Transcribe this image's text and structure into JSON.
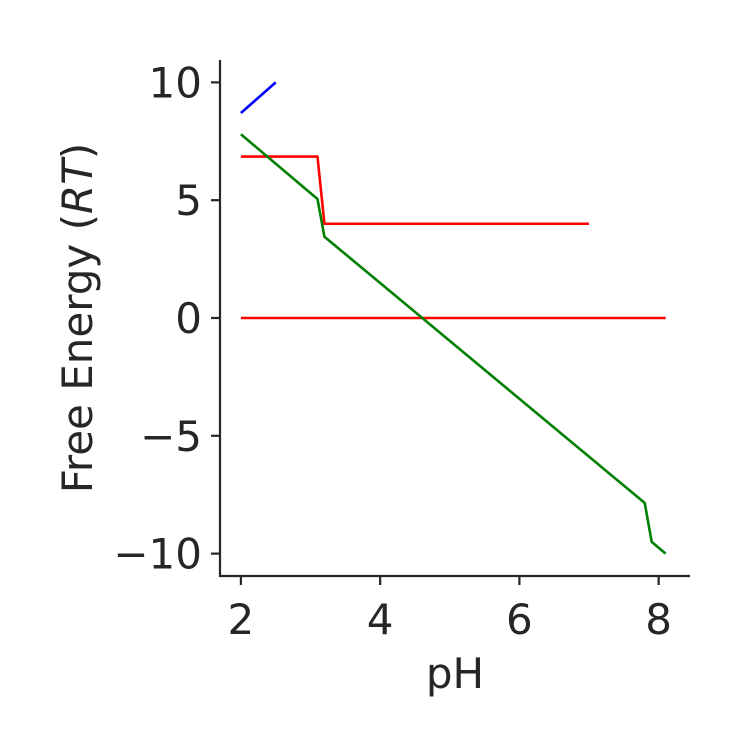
{
  "chart_data": {
    "type": "line",
    "title": "",
    "xlabel": "pH",
    "ylabel_text": "Free Energy (",
    "ylabel_italic": "RT",
    "ylabel_close": ")",
    "xlim": [
      1.7,
      8.45
    ],
    "ylim": [
      -10.95,
      10.95
    ],
    "xticks": [
      2,
      4,
      6,
      8
    ],
    "xtick_labels": [
      "2",
      "4",
      "6",
      "8"
    ],
    "yticks": [
      10,
      5,
      0,
      -5,
      -10
    ],
    "ytick_labels": [
      "10",
      "5",
      "0",
      "−5",
      "−10"
    ],
    "grid": false,
    "legend": "none",
    "series": [
      {
        "color": "#0000ff",
        "x": [
          2.0,
          2.5
        ],
        "y": [
          8.7,
          10.0
        ]
      },
      {
        "color": "#ff0000",
        "x": [
          2.0,
          3.1,
          3.2,
          7.0
        ],
        "y": [
          6.85,
          6.85,
          4.0,
          4.0
        ]
      },
      {
        "color": "#ff0000",
        "x": [
          2.0,
          8.1
        ],
        "y": [
          0.0,
          0.0
        ]
      },
      {
        "color": "#008000",
        "x": [
          2.0,
          3.1,
          3.2,
          7.8,
          7.9,
          8.1
        ],
        "y": [
          7.8,
          5.05,
          3.45,
          -7.85,
          -9.5,
          -10.0
        ]
      }
    ]
  }
}
